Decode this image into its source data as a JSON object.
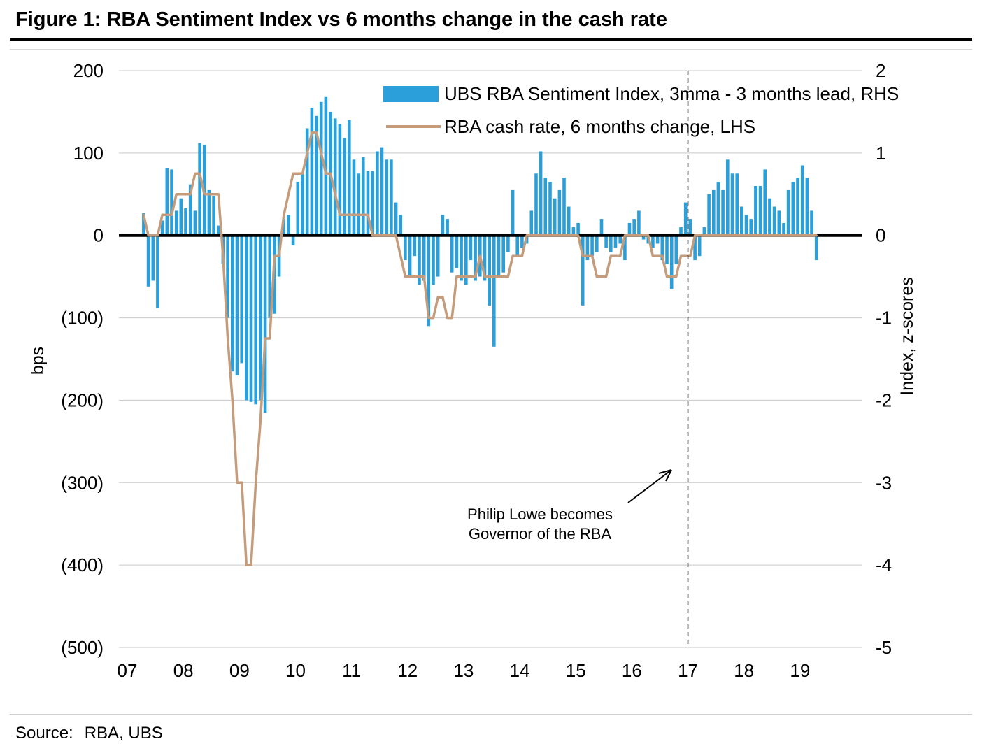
{
  "header": {
    "title": "Figure 1: RBA Sentiment Index vs 6 months change in the cash rate"
  },
  "footer": {
    "source_label": "Source:",
    "source_value": "RBA, UBS"
  },
  "chart_data": {
    "type": "combo-bar-line-dual-axis",
    "title": "Figure 1: RBA Sentiment Index vs 6 months change in the cash rate",
    "frequency": "monthly",
    "start": {
      "year": 2007,
      "month": 4
    },
    "grid": "horizontal",
    "legend_position": "top-inside",
    "x_axis": {
      "tick_labels": [
        "07",
        "08",
        "09",
        "10",
        "11",
        "12",
        "13",
        "14",
        "15",
        "16",
        "17",
        "18",
        "19"
      ],
      "tick_years": [
        2007,
        2008,
        2009,
        2010,
        2011,
        2012,
        2013,
        2014,
        2015,
        2016,
        2017,
        2018,
        2019
      ]
    },
    "left_axis": {
      "label": "bps",
      "range": [
        -500,
        200
      ],
      "ticks": [
        200,
        100,
        0,
        -100,
        -200,
        -300,
        -400,
        -500
      ],
      "tick_labels": [
        "200",
        "100",
        "0",
        "(100)",
        "(200)",
        "(300)",
        "(400)",
        "(500)"
      ]
    },
    "right_axis": {
      "label": "Index, z-scores",
      "range": [
        -5,
        2
      ],
      "ticks": [
        2,
        1,
        0,
        -1,
        -2,
        -3,
        -4,
        -5
      ],
      "tick_labels": [
        "2",
        "1",
        "0",
        "-1",
        "-2",
        "-3",
        "-4",
        "-5"
      ]
    },
    "annotation": {
      "lines": [
        "Philip Lowe becomes",
        "Governor of the RBA"
      ],
      "at_year": 2017,
      "style": "dashed-vertical-line-with-arrow"
    },
    "series": [
      {
        "name": "UBS RBA Sentiment Index, 3mma - 3 months lead, RHS",
        "type": "bar",
        "axis": "right",
        "color": "#2B9FD9",
        "values": [
          0.27,
          -0.62,
          -0.55,
          -0.88,
          0.18,
          0.82,
          0.8,
          0.3,
          0.45,
          0.33,
          0.62,
          0.3,
          1.12,
          1.1,
          0.55,
          0.48,
          0.12,
          -0.35,
          -1.0,
          -1.65,
          -1.7,
          -1.55,
          -2.0,
          -2.02,
          -2.05,
          -2.0,
          -2.15,
          -1.0,
          -0.95,
          -0.5,
          0.2,
          0.25,
          -0.12,
          0.65,
          0.75,
          1.3,
          1.55,
          1.45,
          1.62,
          1.68,
          1.5,
          1.42,
          1.35,
          1.18,
          1.4,
          0.92,
          0.75,
          0.95,
          0.78,
          0.78,
          1.02,
          1.07,
          0.92,
          0.92,
          0.4,
          0.25,
          -0.3,
          -0.5,
          -0.25,
          -0.6,
          -0.55,
          -1.1,
          -0.6,
          -0.5,
          0.25,
          0.2,
          -0.45,
          -0.4,
          -0.55,
          -0.6,
          -0.3,
          -0.55,
          -0.5,
          -0.55,
          -0.85,
          -1.35,
          -0.5,
          -0.45,
          -0.2,
          0.55,
          -0.25,
          -0.15,
          -0.1,
          0.3,
          0.75,
          1.02,
          0.7,
          0.65,
          0.45,
          0.55,
          0.7,
          0.35,
          0.1,
          0.15,
          -0.85,
          -0.3,
          -0.25,
          -0.2,
          0.2,
          -0.15,
          -0.2,
          -0.15,
          -0.1,
          -0.3,
          0.15,
          0.2,
          0.3,
          -0.05,
          -0.1,
          -0.15,
          -0.1,
          -0.3,
          -0.35,
          -0.65,
          -0.35,
          0.1,
          0.4,
          0.2,
          -0.3,
          -0.25,
          0.1,
          0.5,
          0.55,
          0.65,
          0.55,
          0.92,
          0.75,
          0.75,
          0.35,
          0.25,
          0.2,
          0.6,
          0.6,
          0.8,
          0.45,
          0.35,
          0.3,
          0.15,
          0.55,
          0.65,
          0.7,
          0.85,
          0.7,
          0.3,
          -0.3
        ]
      },
      {
        "name": "RBA cash rate, 6 months change, LHS",
        "type": "line",
        "axis": "left",
        "color": "#C49B7B",
        "values": [
          25,
          0,
          0,
          0,
          25,
          25,
          25,
          50,
          50,
          50,
          50,
          75,
          75,
          50,
          50,
          50,
          50,
          -25,
          -125,
          -200,
          -300,
          -300,
          -400,
          -400,
          -300,
          -225,
          -125,
          -125,
          -25,
          -25,
          25,
          50,
          75,
          75,
          75,
          100,
          125,
          125,
          100,
          75,
          75,
          50,
          25,
          25,
          25,
          25,
          25,
          25,
          25,
          0,
          0,
          0,
          0,
          0,
          0,
          -25,
          -50,
          -50,
          -50,
          -50,
          -50,
          -100,
          -100,
          -75,
          -75,
          -100,
          -100,
          -50,
          -50,
          -50,
          -50,
          -50,
          -25,
          -50,
          -50,
          -50,
          -50,
          -50,
          -50,
          -25,
          -25,
          -25,
          0,
          0,
          0,
          0,
          0,
          0,
          0,
          0,
          0,
          0,
          0,
          0,
          -25,
          -25,
          -25,
          -50,
          -50,
          -50,
          -25,
          -25,
          -25,
          0,
          0,
          0,
          0,
          0,
          0,
          -25,
          -25,
          -25,
          -50,
          -50,
          -50,
          -25,
          -25,
          -25,
          0,
          0,
          0,
          0,
          0,
          0,
          0,
          0,
          0,
          0,
          0,
          0,
          0,
          0,
          0,
          0,
          0,
          0,
          0,
          0,
          0,
          0,
          0,
          0,
          0,
          0,
          0
        ]
      }
    ]
  }
}
